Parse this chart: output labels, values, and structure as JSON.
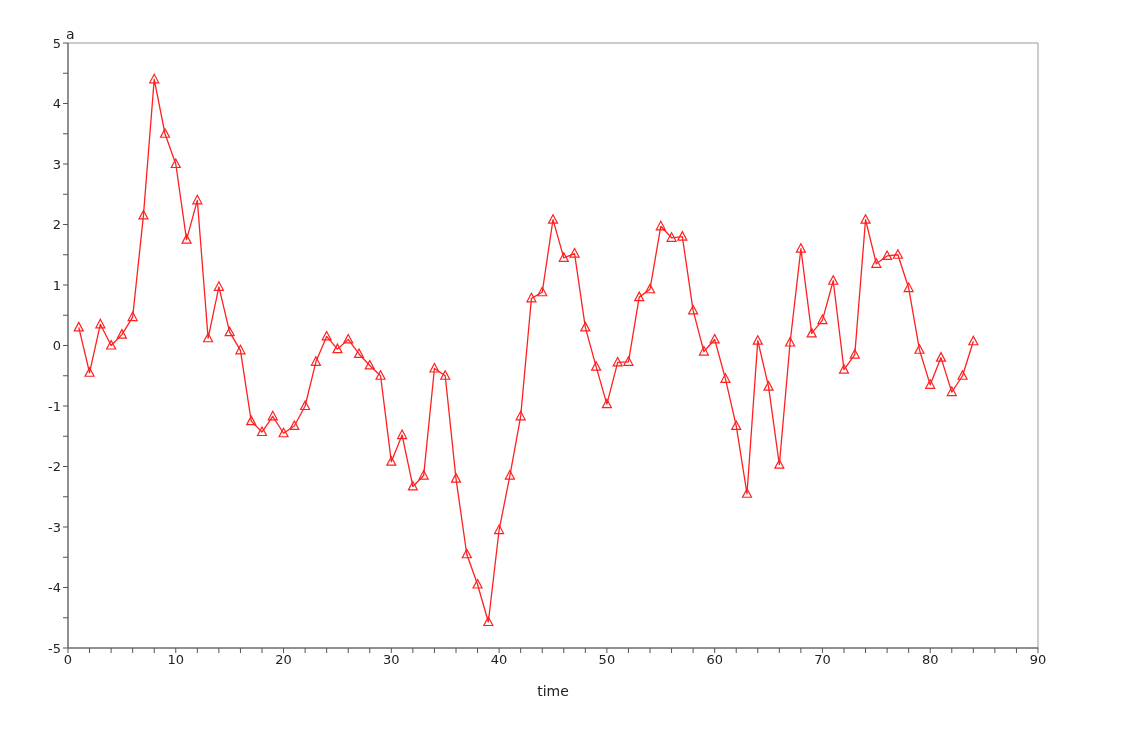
{
  "chart_data": {
    "type": "line",
    "xlabel": "time",
    "ylabel": "a",
    "x": [
      1,
      2,
      3,
      4,
      5,
      6,
      7,
      8,
      9,
      10,
      11,
      12,
      13,
      14,
      15,
      16,
      17,
      18,
      19,
      20,
      21,
      22,
      23,
      24,
      25,
      26,
      27,
      28,
      29,
      30,
      31,
      32,
      33,
      34,
      35,
      36,
      37,
      38,
      39,
      40,
      41,
      42,
      43,
      44,
      45,
      46,
      47,
      48,
      49,
      50,
      51,
      52,
      53,
      54,
      55,
      56,
      57,
      58,
      59,
      60,
      61,
      62,
      63,
      64,
      65,
      66,
      67,
      68,
      69,
      70,
      71,
      72,
      73,
      74,
      75,
      76,
      77,
      78,
      79,
      80,
      81,
      82,
      83,
      84
    ],
    "series": [
      {
        "color": "#ff2020",
        "values": [
          0.3,
          -0.45,
          0.35,
          0.0,
          0.18,
          0.47,
          2.15,
          4.4,
          3.5,
          3.0,
          1.75,
          2.4,
          0.12,
          0.97,
          0.22,
          -0.08,
          -1.25,
          -1.43,
          -1.17,
          -1.45,
          -1.33,
          -1.0,
          -0.27,
          0.15,
          -0.06,
          0.1,
          -0.14,
          -0.33,
          -0.5,
          -1.92,
          -1.48,
          -2.33,
          -2.15,
          -0.38,
          -0.5,
          -2.2,
          -3.45,
          -3.95,
          -4.57,
          -3.05,
          -2.15,
          -1.17,
          0.78,
          0.88,
          2.08,
          1.45,
          1.52,
          0.3,
          -0.35,
          -0.97,
          -0.28,
          -0.27,
          0.8,
          0.93,
          1.97,
          1.78,
          1.8,
          0.58,
          -0.1,
          0.1,
          -0.55,
          -1.33,
          -2.45,
          0.08,
          -0.68,
          -1.97,
          0.05,
          1.6,
          0.2,
          0.42,
          1.07,
          -0.4,
          -0.15,
          2.08,
          1.35,
          1.48,
          1.5,
          0.95,
          -0.07,
          -0.65,
          -0.2,
          -0.77,
          -0.5,
          0.07
        ]
      }
    ],
    "xlim": [
      0,
      90
    ],
    "xticks": [
      0,
      {
        "value": 2,
        "label": null
      },
      {
        "value": 4,
        "label": null
      },
      {
        "value": 6,
        "label": null
      },
      {
        "value": 8,
        "label": null
      },
      10,
      {
        "value": 12,
        "label": null
      },
      {
        "value": 14,
        "label": null
      },
      {
        "value": 16,
        "label": null
      },
      {
        "value": 18,
        "label": null
      },
      20,
      {
        "value": 22,
        "label": null
      },
      {
        "value": 24,
        "label": null
      },
      {
        "value": 26,
        "label": null
      },
      {
        "value": 28,
        "label": null
      },
      30,
      {
        "value": 32,
        "label": null
      },
      {
        "value": 34,
        "label": null
      },
      {
        "value": 36,
        "label": null
      },
      {
        "value": 38,
        "label": null
      },
      40,
      {
        "value": 42,
        "label": null
      },
      {
        "value": 44,
        "label": null
      },
      {
        "value": 46,
        "label": null
      },
      {
        "value": 48,
        "label": null
      },
      50,
      {
        "value": 52,
        "label": null
      },
      {
        "value": 54,
        "label": null
      },
      {
        "value": 56,
        "label": null
      },
      {
        "value": 58,
        "label": null
      },
      60,
      {
        "value": 62,
        "label": null
      },
      {
        "value": 64,
        "label": null
      },
      {
        "value": 66,
        "label": null
      },
      {
        "value": 68,
        "label": null
      },
      70,
      {
        "value": 72,
        "label": null
      },
      {
        "value": 74,
        "label": null
      },
      {
        "value": 76,
        "label": null
      },
      {
        "value": 78,
        "label": null
      },
      80,
      {
        "value": 82,
        "label": null
      },
      {
        "value": 84,
        "label": null
      },
      {
        "value": 86,
        "label": null
      },
      {
        "value": 88,
        "label": null
      },
      90
    ],
    "ylim": [
      -5,
      5
    ],
    "yticks": [
      -5,
      {
        "value": -4.5,
        "label": null
      },
      -4,
      {
        "value": -3.5,
        "label": null
      },
      -3,
      {
        "value": -2.5,
        "label": null
      },
      -2,
      {
        "value": -1.5,
        "label": null
      },
      -1,
      {
        "value": -0.5,
        "label": null
      },
      0,
      {
        "value": 0.5,
        "label": null
      },
      1,
      {
        "value": 1.5,
        "label": null
      },
      2,
      {
        "value": 2.5,
        "label": null
      },
      3,
      {
        "value": 3.5,
        "label": null
      },
      4,
      {
        "value": 4.5,
        "label": null
      },
      5
    ],
    "grid": false,
    "legend": false,
    "marker": "triangle",
    "line_style": "solid"
  }
}
